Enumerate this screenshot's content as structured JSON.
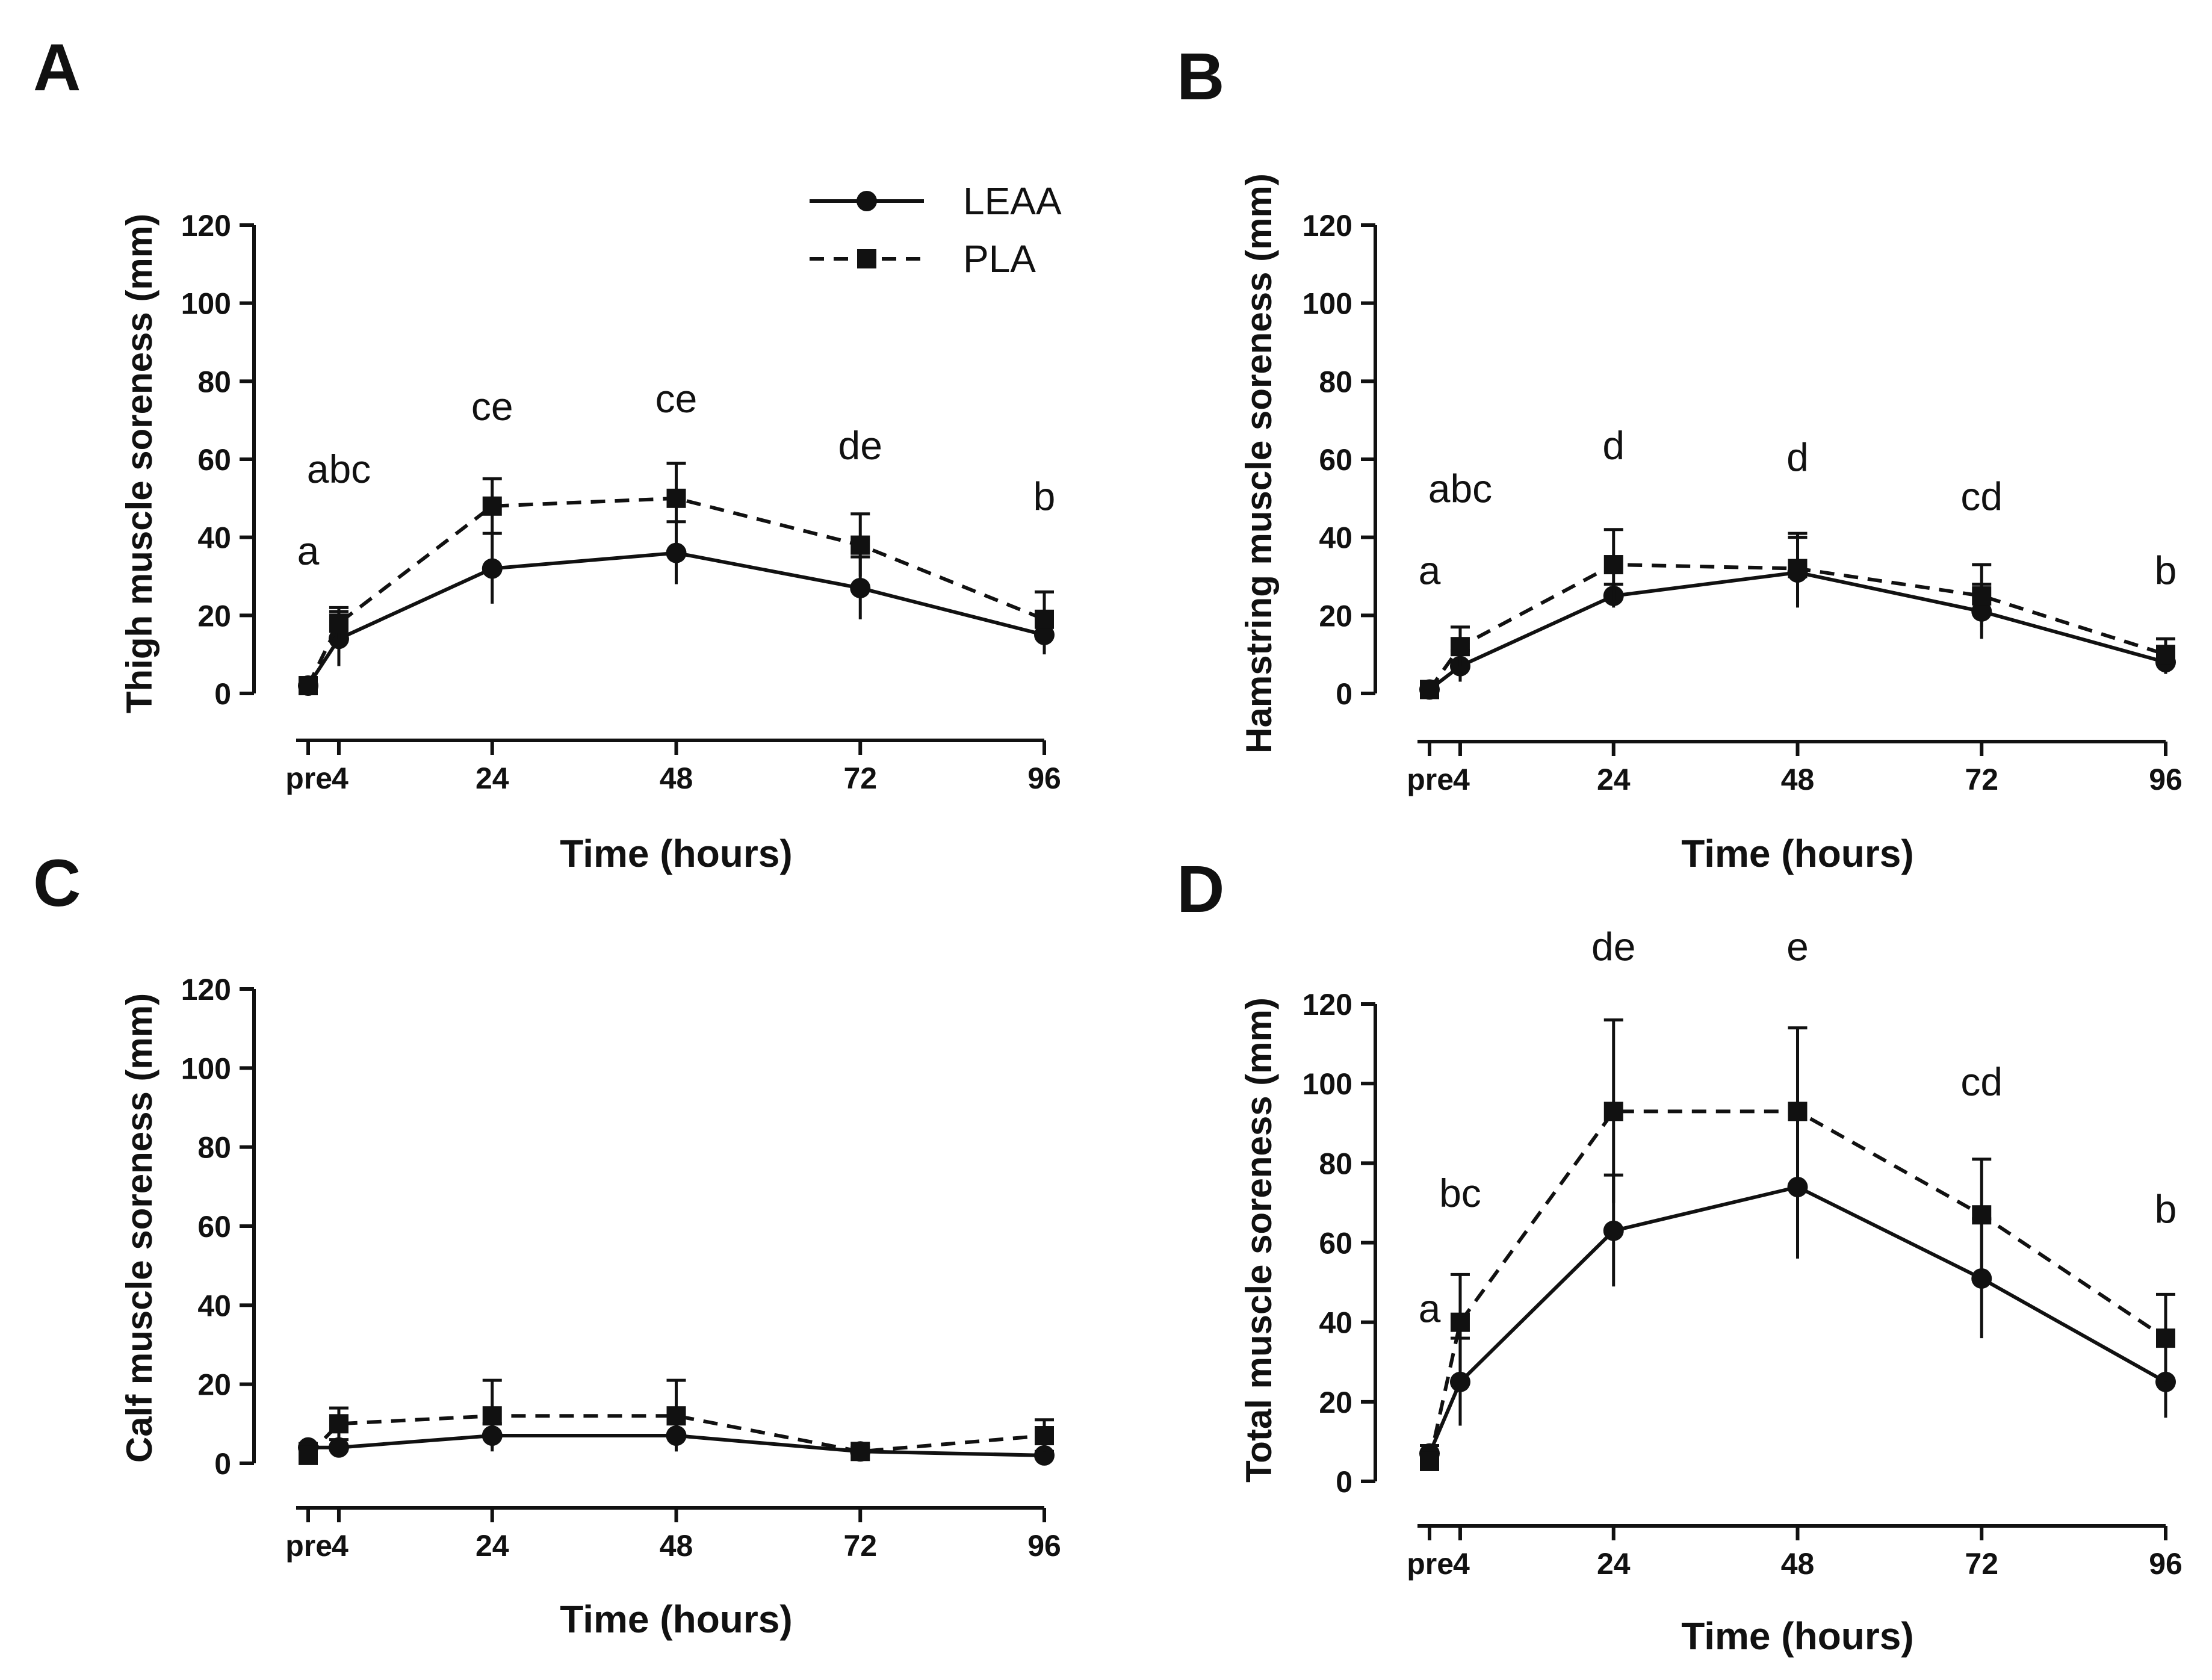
{
  "chart_data": [
    {
      "type": "line",
      "panel_label": "A",
      "ylabel": "Thigh muscle soreness (mm)",
      "xlabel": "Time (hours)",
      "ylim": [
        0,
        120
      ],
      "yticks": [
        "0",
        "20",
        "40",
        "60",
        "80",
        "100",
        "120"
      ],
      "x": [
        0,
        4,
        24,
        48,
        72,
        96
      ],
      "xtick_labels": [
        "pre",
        "4",
        "24",
        "48",
        "72",
        "96"
      ],
      "series": [
        {
          "name": "LEAA",
          "style": "solid",
          "marker": "circle",
          "values": [
            2,
            14,
            32,
            36,
            27,
            15
          ],
          "errors": [
            1,
            7,
            9,
            8,
            8,
            5
          ]
        },
        {
          "name": "PLA",
          "style": "dashed",
          "marker": "square",
          "values": [
            2,
            18,
            48,
            50,
            38,
            19
          ],
          "errors": [
            1,
            4,
            7,
            9,
            8,
            7
          ]
        }
      ],
      "annotations": [
        {
          "text": "a",
          "x": 0,
          "y": 33
        },
        {
          "text": "abc",
          "x": 4,
          "y": 54
        },
        {
          "text": "ce",
          "x": 24,
          "y": 70
        },
        {
          "text": "ce",
          "x": 48,
          "y": 72
        },
        {
          "text": "de",
          "x": 72,
          "y": 60
        },
        {
          "text": "b",
          "x": 96,
          "y": 47
        }
      ],
      "legend": {
        "position": "top-right",
        "entries": [
          "LEAA",
          "PLA"
        ]
      }
    },
    {
      "type": "line",
      "panel_label": "B",
      "ylabel": "Hamstring muscle soreness (mm)",
      "xlabel": "Time (hours)",
      "ylim": [
        0,
        120
      ],
      "yticks": [
        "0",
        "20",
        "40",
        "60",
        "80",
        "100",
        "120"
      ],
      "x": [
        0,
        4,
        24,
        48,
        72,
        96
      ],
      "xtick_labels": [
        "pre",
        "4",
        "24",
        "48",
        "72",
        "96"
      ],
      "series": [
        {
          "name": "LEAA",
          "style": "solid",
          "marker": "circle",
          "values": [
            1,
            7,
            25,
            31,
            21,
            8
          ],
          "errors": [
            1,
            4,
            3,
            9,
            7,
            3
          ]
        },
        {
          "name": "PLA",
          "style": "dashed",
          "marker": "square",
          "values": [
            1,
            12,
            33,
            32,
            25,
            10
          ],
          "errors": [
            1,
            5,
            9,
            9,
            8,
            4
          ]
        }
      ],
      "annotations": [
        {
          "text": "a",
          "x": 0,
          "y": 28
        },
        {
          "text": "abc",
          "x": 4,
          "y": 49
        },
        {
          "text": "d",
          "x": 24,
          "y": 60
        },
        {
          "text": "d",
          "x": 48,
          "y": 57
        },
        {
          "text": "cd",
          "x": 72,
          "y": 47
        },
        {
          "text": "b",
          "x": 96,
          "y": 28
        }
      ]
    },
    {
      "type": "line",
      "panel_label": "C",
      "ylabel": "Calf muscle soreness (mm)",
      "xlabel": "Time (hours)",
      "ylim": [
        0,
        120
      ],
      "yticks": [
        "0",
        "20",
        "40",
        "60",
        "80",
        "100",
        "120"
      ],
      "x": [
        0,
        4,
        24,
        48,
        72,
        96
      ],
      "xtick_labels": [
        "pre",
        "4",
        "24",
        "48",
        "72",
        "96"
      ],
      "series": [
        {
          "name": "LEAA",
          "style": "solid",
          "marker": "circle",
          "values": [
            4,
            4,
            7,
            7,
            3,
            2
          ],
          "errors": [
            1,
            2,
            3,
            4,
            1,
            1
          ]
        },
        {
          "name": "PLA",
          "style": "dashed",
          "marker": "square",
          "values": [
            2,
            10,
            12,
            12,
            3,
            7
          ],
          "errors": [
            1,
            4,
            9,
            9,
            1,
            4
          ]
        }
      ],
      "annotations": []
    },
    {
      "type": "line",
      "panel_label": "D",
      "ylabel": "Total muscle soreness (mm)",
      "xlabel": "Time (hours)",
      "ylim": [
        0,
        120
      ],
      "yticks": [
        "0",
        "20",
        "40",
        "60",
        "80",
        "100",
        "120"
      ],
      "x": [
        0,
        4,
        24,
        48,
        72,
        96
      ],
      "xtick_labels": [
        "pre",
        "4",
        "24",
        "48",
        "72",
        "96"
      ],
      "series": [
        {
          "name": "LEAA",
          "style": "solid",
          "marker": "circle",
          "values": [
            7,
            25,
            63,
            74,
            51,
            25
          ],
          "errors": [
            2,
            11,
            14,
            18,
            15,
            9
          ]
        },
        {
          "name": "PLA",
          "style": "dashed",
          "marker": "square",
          "values": [
            5,
            40,
            93,
            93,
            67,
            36
          ],
          "errors": [
            2,
            12,
            23,
            21,
            14,
            11
          ]
        }
      ],
      "annotations": [
        {
          "text": "a",
          "x": 0,
          "y": 40
        },
        {
          "text": "bc",
          "x": 4,
          "y": 69
        },
        {
          "text": "de",
          "x": 24,
          "y": 131
        },
        {
          "text": "e",
          "x": 48,
          "y": 131
        },
        {
          "text": "cd",
          "x": 72,
          "y": 97
        },
        {
          "text": "b",
          "x": 96,
          "y": 65
        }
      ]
    }
  ]
}
